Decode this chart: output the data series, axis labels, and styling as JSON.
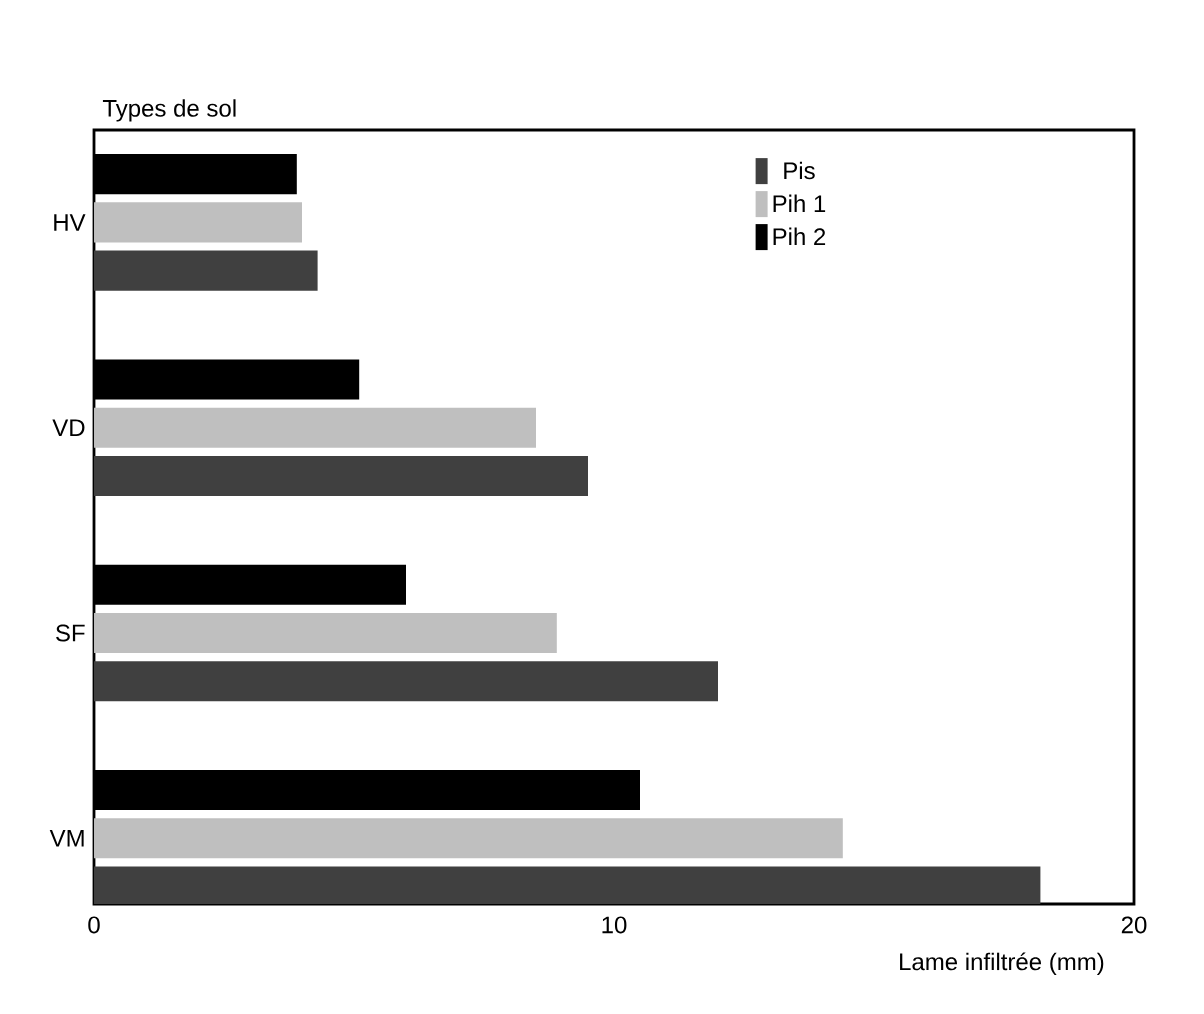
{
  "chart_data": {
    "type": "bar",
    "orientation": "horizontal",
    "xlabel": "Lame infiltrée (mm)",
    "ylabel": "Types de sol",
    "categories": [
      "HV",
      "VD",
      "SF",
      "VM"
    ],
    "series": [
      {
        "name": "Pis",
        "color": "#404040",
        "values": [
          4.3,
          9.5,
          12.0,
          18.2
        ]
      },
      {
        "name": "Pih 1",
        "color": "#bfbfbf",
        "values": [
          4.0,
          8.5,
          8.9,
          14.4
        ]
      },
      {
        "name": "Pih 2",
        "color": "#000000",
        "values": [
          3.9,
          5.1,
          6.0,
          10.5
        ]
      }
    ],
    "xlim": [
      0,
      20
    ],
    "xticks": [
      0,
      10,
      20
    ],
    "legend": "top right"
  }
}
